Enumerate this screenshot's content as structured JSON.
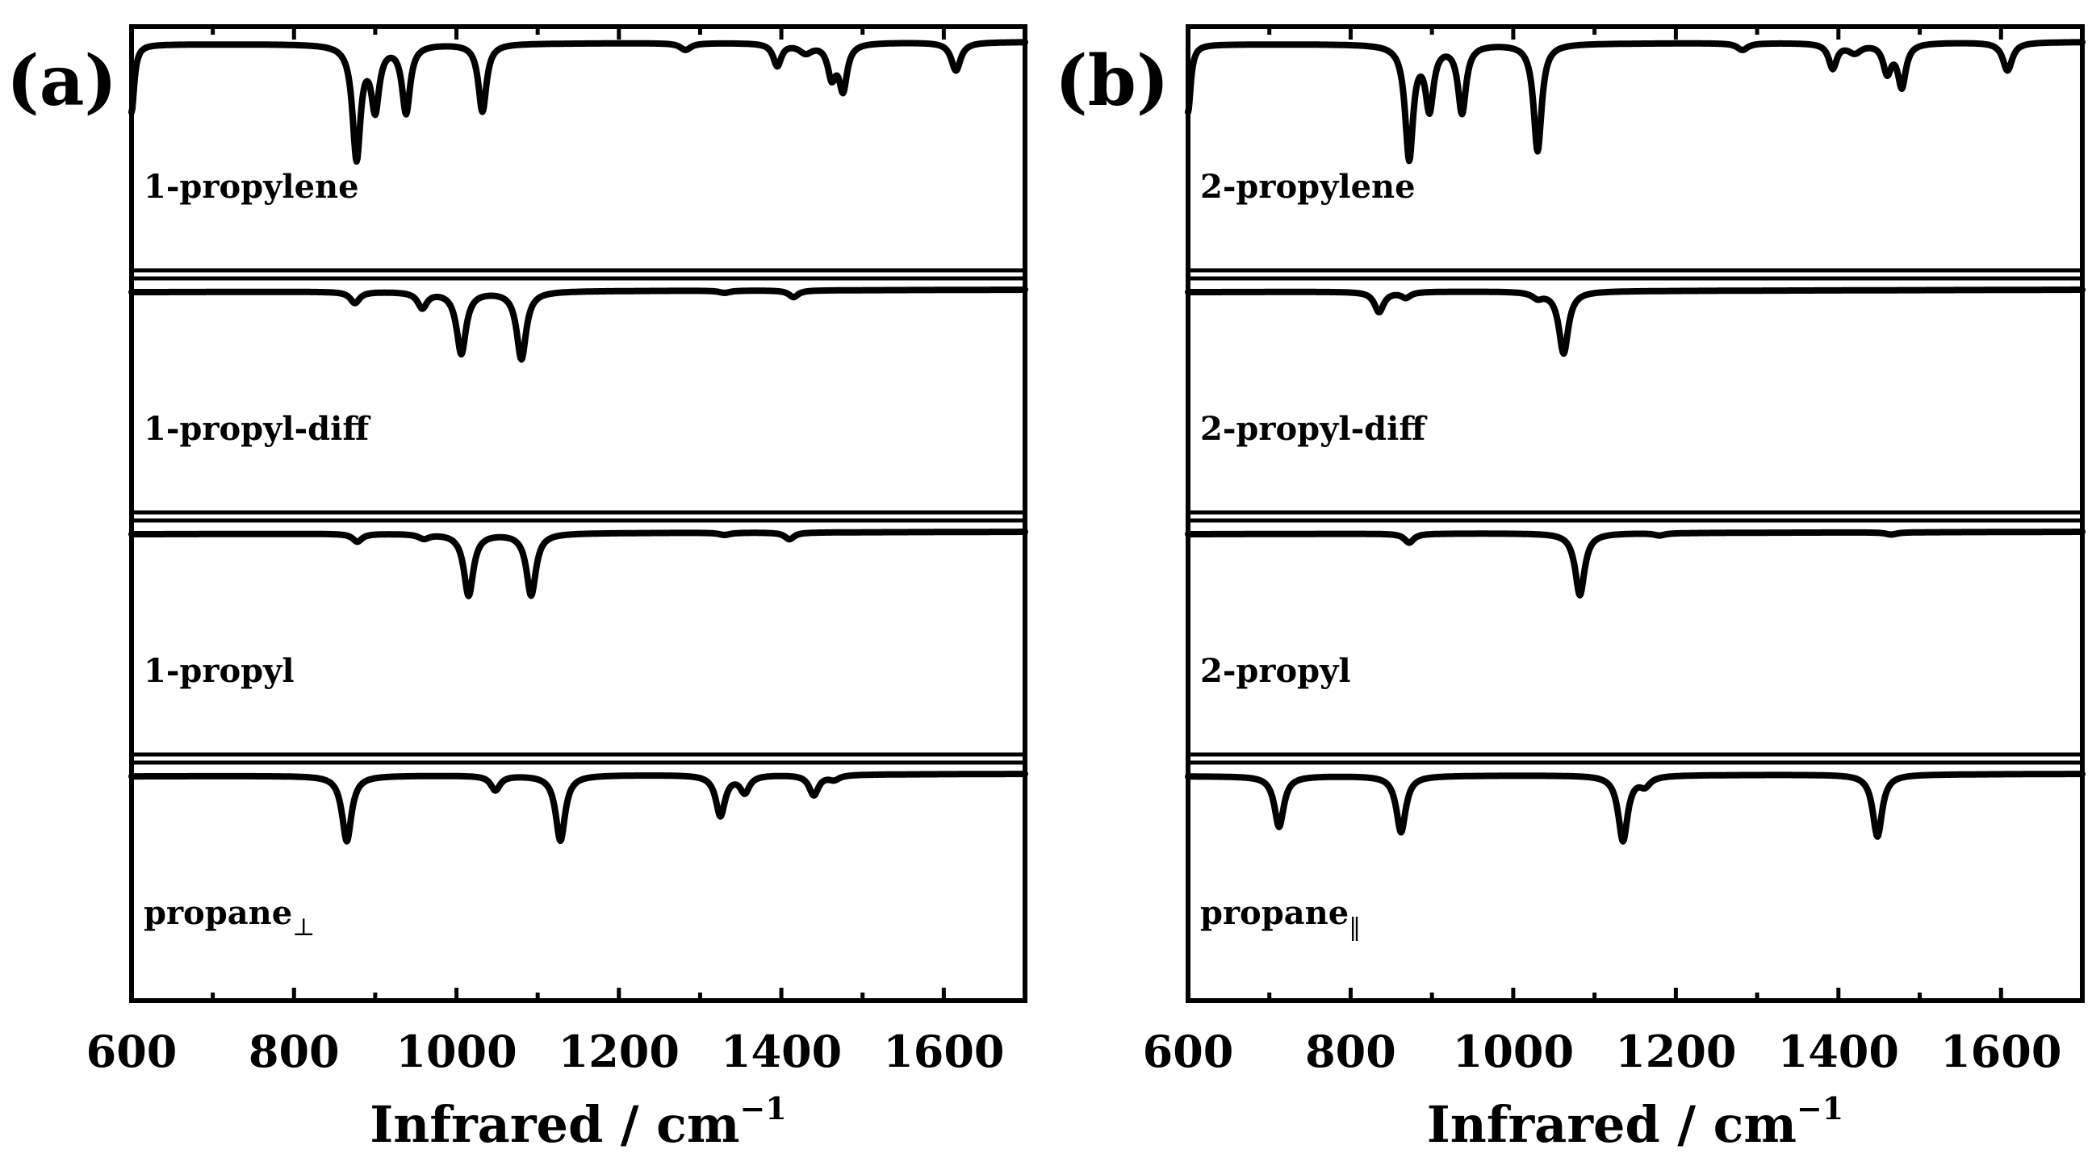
{
  "chart_data": [
    {
      "type": "line",
      "panel_label": "(a)",
      "xlabel": "Infrared / cm",
      "xlabel_exponent": "−1",
      "xlim": [
        600,
        1700
      ],
      "xticks": [
        "600",
        "800",
        "1000",
        "1200",
        "1400",
        "1600"
      ],
      "series": [
        {
          "name": "1-propylene",
          "label": "1-propylene",
          "label_sub": "",
          "peaks": [
            [
              600,
              0.6,
              4
            ],
            [
              877,
              1.0,
              6
            ],
            [
              900,
              0.55,
              6
            ],
            [
              938,
              0.6,
              6
            ],
            [
              1032,
              0.6,
              6
            ],
            [
              1282,
              0.06,
              8
            ],
            [
              1395,
              0.2,
              6
            ],
            [
              1430,
              0.08,
              10
            ],
            [
              1462,
              0.28,
              6
            ],
            [
              1476,
              0.4,
              6
            ],
            [
              1615,
              0.25,
              7
            ]
          ]
        },
        {
          "name": "1-propyl-diff",
          "label": "1-propyl-diff",
          "label_sub": "",
          "peaks": [
            [
              875,
              0.1,
              7
            ],
            [
              958,
              0.14,
              7
            ],
            [
              1006,
              0.55,
              7
            ],
            [
              1080,
              0.6,
              7
            ],
            [
              1330,
              0.02,
              8
            ],
            [
              1415,
              0.06,
              7
            ]
          ]
        },
        {
          "name": "1-propyl",
          "label": "1-propyl",
          "label_sub": "",
          "peaks": [
            [
              878,
              0.07,
              7
            ],
            [
              960,
              0.04,
              8
            ],
            [
              1015,
              0.55,
              7
            ],
            [
              1092,
              0.55,
              7
            ],
            [
              1330,
              0.02,
              8
            ],
            [
              1410,
              0.06,
              7
            ]
          ]
        },
        {
          "name": "propane-perp",
          "label": "propane",
          "label_sub": "⊥",
          "peaks": [
            [
              865,
              0.58,
              7
            ],
            [
              1048,
              0.13,
              7
            ],
            [
              1128,
              0.58,
              7
            ],
            [
              1325,
              0.36,
              7
            ],
            [
              1355,
              0.15,
              7
            ],
            [
              1440,
              0.18,
              7
            ],
            [
              1465,
              0.04,
              8
            ]
          ]
        }
      ]
    },
    {
      "type": "line",
      "panel_label": "(b)",
      "xlabel": "Infrared / cm",
      "xlabel_exponent": "−1",
      "xlim": [
        600,
        1700
      ],
      "xticks": [
        "600",
        "800",
        "1000",
        "1200",
        "1400",
        "1600"
      ],
      "series": [
        {
          "name": "2-propylene",
          "label": "2-propylene",
          "label_sub": "",
          "peaks": [
            [
              600,
              0.6,
              4
            ],
            [
              872,
              1.0,
              6
            ],
            [
              897,
              0.55,
              6
            ],
            [
              937,
              0.6,
              6
            ],
            [
              1030,
              0.95,
              6
            ],
            [
              1282,
              0.06,
              8
            ],
            [
              1393,
              0.22,
              6
            ],
            [
              1420,
              0.08,
              10
            ],
            [
              1460,
              0.25,
              6
            ],
            [
              1478,
              0.38,
              6
            ],
            [
              1608,
              0.25,
              7
            ]
          ]
        },
        {
          "name": "2-propyl-diff",
          "label": "2-propyl-diff",
          "label_sub": "",
          "peaks": [
            [
              835,
              0.18,
              7
            ],
            [
              868,
              0.05,
              7
            ],
            [
              1030,
              0.05,
              8
            ],
            [
              1062,
              0.55,
              7
            ]
          ]
        },
        {
          "name": "2-propyl",
          "label": "2-propyl",
          "label_sub": "",
          "peaks": [
            [
              872,
              0.08,
              7
            ],
            [
              1082,
              0.55,
              7
            ],
            [
              1180,
              0.02,
              8
            ],
            [
              1465,
              0.02,
              8
            ]
          ]
        },
        {
          "name": "propane-par",
          "label": "propane",
          "label_sub": "‖",
          "peaks": [
            [
              712,
              0.45,
              7
            ],
            [
              862,
              0.5,
              7
            ],
            [
              1135,
              0.58,
              7
            ],
            [
              1162,
              0.08,
              8
            ],
            [
              1448,
              0.55,
              7
            ]
          ]
        }
      ]
    }
  ]
}
